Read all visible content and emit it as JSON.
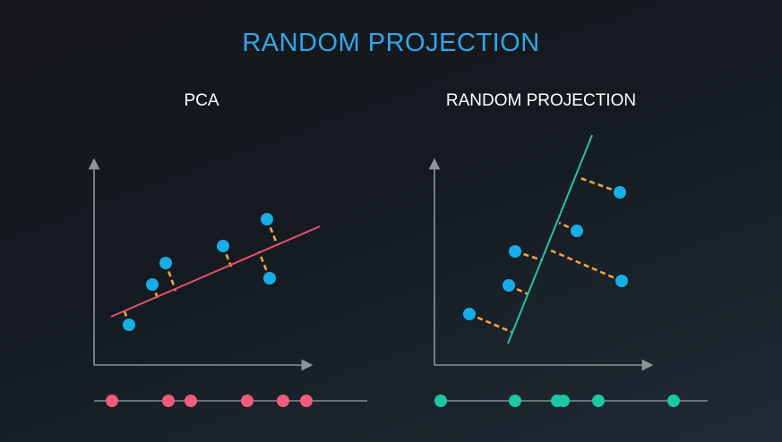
{
  "title": "RANDOM PROJECTION",
  "panels": {
    "pca": {
      "title": "PCA"
    },
    "random_projection": {
      "title": "RANDOM PROJECTION"
    }
  },
  "colors": {
    "title": "#2ea8e8",
    "axis": "#8e949b",
    "data_point": "#16aee8",
    "pca_line": "#e8506e",
    "rp_line": "#1fc6a6",
    "projection_dash": "#f3a63a",
    "pca_projected_point": "#f35a7c",
    "rp_projected_point": "#18c9a3",
    "number_line": "#9aa0a6"
  },
  "icons": {
    "axis_arrow": "arrow-head-icon"
  }
}
